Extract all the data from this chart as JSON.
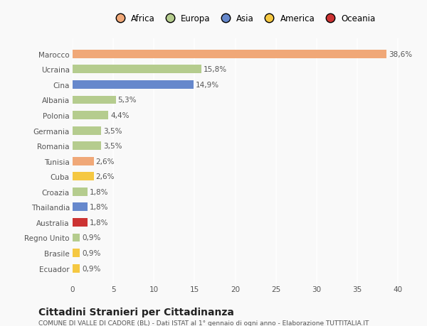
{
  "categories": [
    "Ecuador",
    "Brasile",
    "Regno Unito",
    "Australia",
    "Thailandia",
    "Croazia",
    "Cuba",
    "Tunisia",
    "Romania",
    "Germania",
    "Polonia",
    "Albania",
    "Cina",
    "Ucraina",
    "Marocco"
  ],
  "values": [
    0.9,
    0.9,
    0.9,
    1.8,
    1.8,
    1.8,
    2.6,
    2.6,
    3.5,
    3.5,
    4.4,
    5.3,
    14.9,
    15.8,
    38.6
  ],
  "labels": [
    "0,9%",
    "0,9%",
    "0,9%",
    "1,8%",
    "1,8%",
    "1,8%",
    "2,6%",
    "2,6%",
    "3,5%",
    "3,5%",
    "4,4%",
    "5,3%",
    "14,9%",
    "15,8%",
    "38,6%"
  ],
  "colors": [
    "#f5c842",
    "#f5c842",
    "#b5cc8e",
    "#cc3333",
    "#6688cc",
    "#b5cc8e",
    "#f5c842",
    "#f0a878",
    "#b5cc8e",
    "#b5cc8e",
    "#b5cc8e",
    "#b5cc8e",
    "#6688cc",
    "#b5cc8e",
    "#f0a878"
  ],
  "continent_colors": {
    "Africa": "#f0a878",
    "Europa": "#b5cc8e",
    "Asia": "#6688cc",
    "America": "#f5c842",
    "Oceania": "#cc3333"
  },
  "xlim": [
    0,
    42
  ],
  "xticks": [
    0,
    5,
    10,
    15,
    20,
    25,
    30,
    35,
    40
  ],
  "title": "Cittadini Stranieri per Cittadinanza",
  "subtitle": "COMUNE DI VALLE DI CADORE (BL) - Dati ISTAT al 1° gennaio di ogni anno - Elaborazione TUTTITALIA.IT",
  "background_color": "#f9f9f9",
  "bar_height": 0.55,
  "grid_color": "#ffffff",
  "label_fontsize": 7.5,
  "tick_fontsize": 7.5,
  "title_fontsize": 10,
  "subtitle_fontsize": 6.5
}
